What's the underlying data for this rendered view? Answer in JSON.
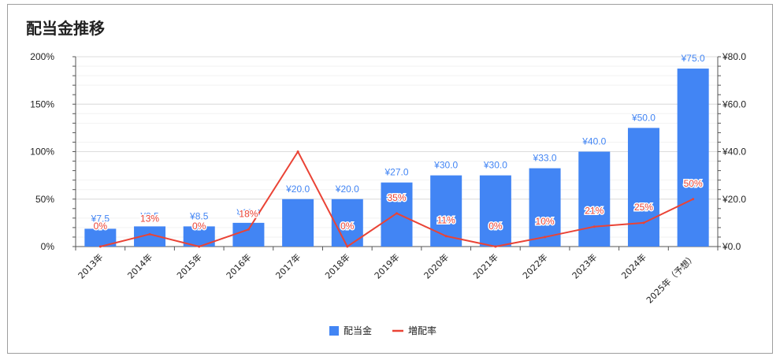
{
  "chart_data": {
    "type": "bar",
    "title": "配当金推移",
    "categories": [
      "2013年",
      "2014年",
      "2015年",
      "2016年",
      "2017年",
      "2018年",
      "2019年",
      "2020年",
      "2021年",
      "2022年",
      "2023年",
      "2024年",
      "2025年（予想）"
    ],
    "series": [
      {
        "name": "配当金",
        "type": "bar",
        "axis": "right",
        "color": "#4285f4",
        "values": [
          7.5,
          8.5,
          8.5,
          10.0,
          20.0,
          20.0,
          27.0,
          30.0,
          30.0,
          33.0,
          40.0,
          50.0,
          75.0
        ],
        "labels": [
          "¥7.5",
          "¥8.5",
          "¥8.5",
          "¥10.0",
          "¥20.0",
          "¥20.0",
          "¥27.0",
          "¥30.0",
          "¥30.0",
          "¥33.0",
          "¥40.0",
          "¥50.0",
          "¥75.0"
        ]
      },
      {
        "name": "増配率",
        "type": "line",
        "axis": "left",
        "color": "#ea4335",
        "values": [
          0,
          13,
          0,
          18,
          100,
          0,
          35,
          11,
          0,
          10,
          21,
          25,
          50
        ],
        "labels": [
          "0%",
          "13%",
          "0%",
          "18%",
          "",
          "0%",
          "35%",
          "11%",
          "0%",
          "10%",
          "21%",
          "25%",
          "50%"
        ]
      }
    ],
    "left_axis": {
      "ylim": [
        0,
        200
      ],
      "ticks": [
        "0%",
        "50%",
        "100%",
        "150%",
        "200%"
      ],
      "tick_values": [
        0,
        50,
        100,
        150,
        200
      ]
    },
    "right_axis": {
      "ylim": [
        0,
        80
      ],
      "ticks": [
        "¥0.0",
        "¥20.0",
        "¥40.0",
        "¥60.0",
        "¥80.0"
      ],
      "tick_values": [
        0,
        20,
        40,
        60,
        80
      ]
    },
    "grid": true,
    "legend_position": "bottom"
  }
}
